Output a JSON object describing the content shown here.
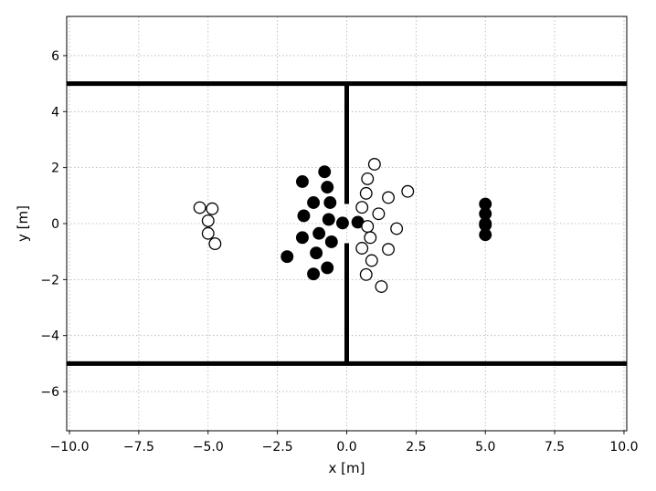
{
  "chart_data": {
    "type": "scatter",
    "title": "",
    "xlabel": "x [m]",
    "ylabel": "y [m]",
    "xlim": [
      -10.1,
      10.1
    ],
    "ylim": [
      -7.4,
      7.4
    ],
    "xticks": [
      -10.0,
      -7.5,
      -5.0,
      -2.5,
      0.0,
      2.5,
      5.0,
      7.5,
      10.0
    ],
    "xtick_labels": [
      "−10.0",
      "−7.5",
      "−5.0",
      "−2.5",
      "0.0",
      "2.5",
      "5.0",
      "7.5",
      "10.0"
    ],
    "yticks": [
      -6,
      -4,
      -2,
      0,
      2,
      4,
      6
    ],
    "ytick_labels": [
      "−6",
      "−4",
      "−2",
      "0",
      "2",
      "4",
      "6"
    ],
    "grid": true,
    "walls": [
      {
        "x": [
          -10.1,
          10.1
        ],
        "y": [
          5,
          5
        ]
      },
      {
        "x": [
          -10.1,
          10.1
        ],
        "y": [
          -5,
          -5
        ]
      },
      {
        "x": [
          0,
          0
        ],
        "y": [
          5,
          0.7
        ]
      },
      {
        "x": [
          0,
          0
        ],
        "y": [
          -0.7,
          -5
        ]
      }
    ],
    "series": [
      {
        "marker": "filled",
        "color": "#000000",
        "points": [
          [
            -0.8,
            1.85
          ],
          [
            -1.6,
            1.5
          ],
          [
            -0.7,
            1.3
          ],
          [
            -1.2,
            0.75
          ],
          [
            -0.6,
            0.75
          ],
          [
            -1.55,
            0.28
          ],
          [
            -0.65,
            0.15
          ],
          [
            -0.15,
            0.02
          ],
          [
            0.4,
            0.05
          ],
          [
            -1.0,
            -0.35
          ],
          [
            -1.6,
            -0.5
          ],
          [
            -0.55,
            -0.65
          ],
          [
            -1.1,
            -1.05
          ],
          [
            -2.15,
            -1.18
          ],
          [
            -0.7,
            -1.58
          ],
          [
            -1.2,
            -1.8
          ],
          [
            5.0,
            0.7
          ],
          [
            5.0,
            0.35
          ],
          [
            5.0,
            0.0
          ],
          [
            5.0,
            -0.05
          ],
          [
            5.0,
            -0.4
          ]
        ]
      },
      {
        "marker": "open",
        "color": "#000000",
        "points": [
          [
            1.0,
            2.12
          ],
          [
            0.75,
            1.6
          ],
          [
            0.7,
            1.08
          ],
          [
            1.5,
            0.93
          ],
          [
            2.2,
            1.15
          ],
          [
            0.55,
            0.58
          ],
          [
            1.15,
            0.35
          ],
          [
            0.75,
            -0.1
          ],
          [
            1.8,
            -0.18
          ],
          [
            0.85,
            -0.5
          ],
          [
            0.55,
            -0.88
          ],
          [
            1.5,
            -0.92
          ],
          [
            0.9,
            -1.32
          ],
          [
            0.7,
            -1.82
          ],
          [
            1.25,
            -2.25
          ],
          [
            -5.3,
            0.57
          ],
          [
            -4.85,
            0.53
          ],
          [
            -5.0,
            0.1
          ],
          [
            -5.0,
            -0.35
          ],
          [
            -4.75,
            -0.72
          ]
        ]
      }
    ]
  }
}
